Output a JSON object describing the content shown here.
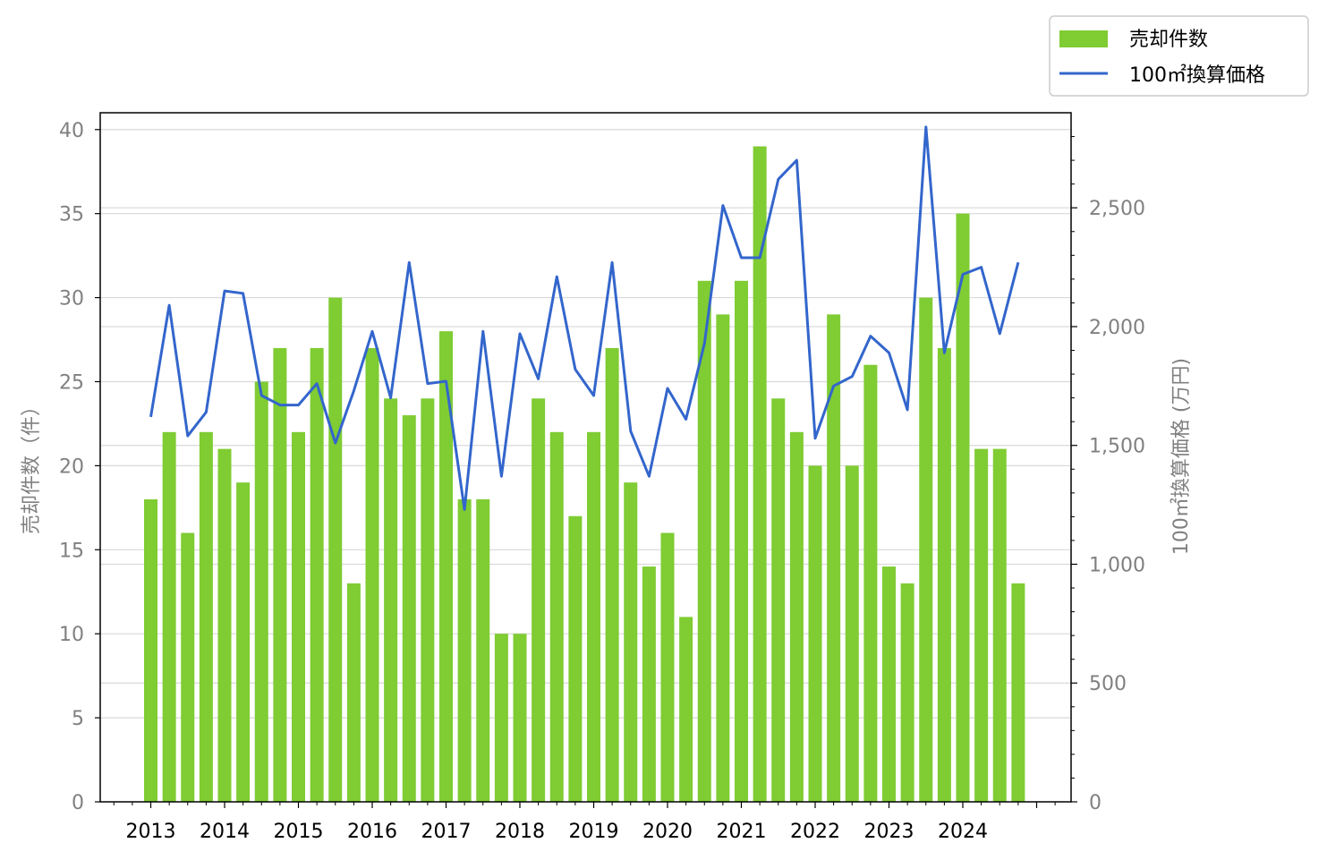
{
  "chart_data": {
    "type": "bar+line",
    "x_tick_labels": [
      "2013",
      "2014",
      "2015",
      "2016",
      "2017",
      "2018",
      "2019",
      "2020",
      "2021",
      "2022",
      "2023",
      "2024"
    ],
    "y_left": {
      "label": "売却件数（件）",
      "ylim": [
        0,
        41
      ],
      "ticks": [
        0,
        5,
        10,
        15,
        20,
        25,
        30,
        35,
        40
      ],
      "tick_labels": [
        "0",
        "5",
        "10",
        "15",
        "20",
        "25",
        "30",
        "35",
        "40"
      ]
    },
    "y_right": {
      "label": "100㎡換算価格 (万円)",
      "ylim": [
        0,
        2900
      ],
      "ticks": [
        0,
        500,
        1000,
        1500,
        2000,
        2500
      ],
      "tick_labels": [
        "0",
        "500",
        "1,000",
        "1,500",
        "2,000",
        "2,500"
      ]
    },
    "grid": "horizontal (right axis)",
    "legend_placement": "top-right, outside plot",
    "series": [
      {
        "name": "売却件数",
        "kind": "bar",
        "axis": "left",
        "color": "#7fcc33",
        "start_year": 2013,
        "values": [
          18,
          22,
          16,
          22,
          21,
          19,
          25,
          27,
          22,
          27,
          30,
          13,
          27,
          24,
          23,
          24,
          28,
          18,
          18,
          10,
          10,
          24,
          22,
          17,
          22,
          27,
          19,
          14,
          16,
          11,
          31,
          29,
          31,
          39,
          24,
          22,
          20,
          29,
          20,
          26,
          14,
          13,
          30,
          27,
          35,
          21,
          21,
          13
        ]
      },
      {
        "name": "100㎡換算価格",
        "kind": "line",
        "axis": "right",
        "color": "#3366cc",
        "start_year": 2013,
        "values": [
          1620,
          2090,
          1540,
          1640,
          2150,
          2140,
          1710,
          1670,
          1670,
          1760,
          1510,
          1730,
          1980,
          1700,
          2270,
          1760,
          1770,
          1230,
          1980,
          1370,
          1970,
          1780,
          2210,
          1820,
          1710,
          2270,
          1560,
          1370,
          1740,
          1610,
          1930,
          2510,
          2290,
          2290,
          2620,
          2700,
          1530,
          1750,
          1790,
          1960,
          1890,
          1650,
          2840,
          1890,
          2220,
          2250,
          1970,
          2270
        ]
      }
    ]
  }
}
